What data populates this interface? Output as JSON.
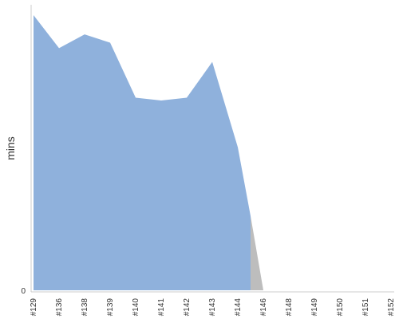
{
  "chart_data": {
    "type": "area",
    "x": [
      "#129",
      "#136",
      "#138",
      "#139",
      "#140",
      "#141",
      "#142",
      "#143",
      "#144",
      "#146",
      "#148",
      "#149",
      "#150",
      "#151",
      "#152"
    ],
    "ylabel": "mins",
    "y_tick_labels": [
      "0"
    ],
    "ylim": [
      0,
      100
    ],
    "series": [
      {
        "color": "#8fb1dc",
        "points": [
          {
            "x": "#129",
            "y": 100
          },
          {
            "x": "#136",
            "y": 88
          },
          {
            "x": "#138",
            "y": 93
          },
          {
            "x": "#139",
            "y": 90
          },
          {
            "x": "#140",
            "y": 70
          },
          {
            "x": "#141",
            "y": 69
          },
          {
            "x": "#142",
            "y": 70
          },
          {
            "x": "#143",
            "y": 83
          },
          {
            "x": "#144",
            "y": 52
          },
          {
            "x": "#144.5",
            "y": 27
          },
          {
            "x": "#144.5",
            "y": 0
          }
        ]
      },
      {
        "color": "#bdbdbd",
        "points": [
          {
            "x": "#144.5",
            "y": 27
          },
          {
            "x": "#146",
            "y": 0
          }
        ]
      }
    ],
    "grid": false,
    "legend": "none"
  }
}
